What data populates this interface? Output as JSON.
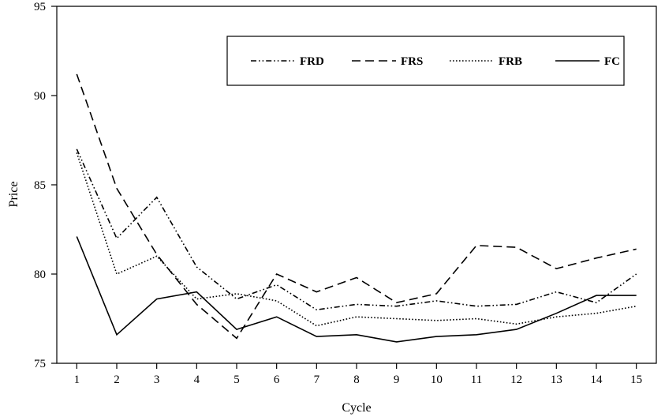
{
  "chart_data": {
    "type": "line",
    "title": "",
    "xlabel": "Cycle",
    "ylabel": "Price",
    "x": [
      1,
      2,
      3,
      4,
      5,
      6,
      7,
      8,
      9,
      10,
      11,
      12,
      13,
      14,
      15
    ],
    "xlim": [
      0.5,
      15.5
    ],
    "ylim": [
      75,
      95
    ],
    "yticks": [
      75,
      80,
      85,
      90,
      95
    ],
    "grid": false,
    "legend_position": "top-right",
    "series": [
      {
        "name": "FRD",
        "style": "dash-dot-dot",
        "values": [
          87.0,
          82.0,
          84.3,
          80.4,
          78.6,
          79.4,
          78.0,
          78.3,
          78.2,
          78.5,
          78.2,
          78.3,
          79.0,
          78.4,
          80.0
        ]
      },
      {
        "name": "FRS",
        "style": "dashed",
        "values": [
          91.2,
          84.8,
          81.1,
          78.3,
          76.4,
          80.0,
          79.0,
          79.8,
          78.4,
          78.9,
          81.6,
          81.5,
          80.3,
          80.9,
          81.4
        ]
      },
      {
        "name": "FRB",
        "style": "dotted",
        "values": [
          86.8,
          80.0,
          81.0,
          78.6,
          78.9,
          78.5,
          77.1,
          77.6,
          77.5,
          77.4,
          77.5,
          77.2,
          77.6,
          77.8,
          78.2
        ]
      },
      {
        "name": "FC",
        "style": "solid",
        "values": [
          82.1,
          76.6,
          78.6,
          79.0,
          76.9,
          77.6,
          76.5,
          76.6,
          76.2,
          76.5,
          76.6,
          76.9,
          77.8,
          78.8,
          78.8
        ]
      }
    ]
  }
}
